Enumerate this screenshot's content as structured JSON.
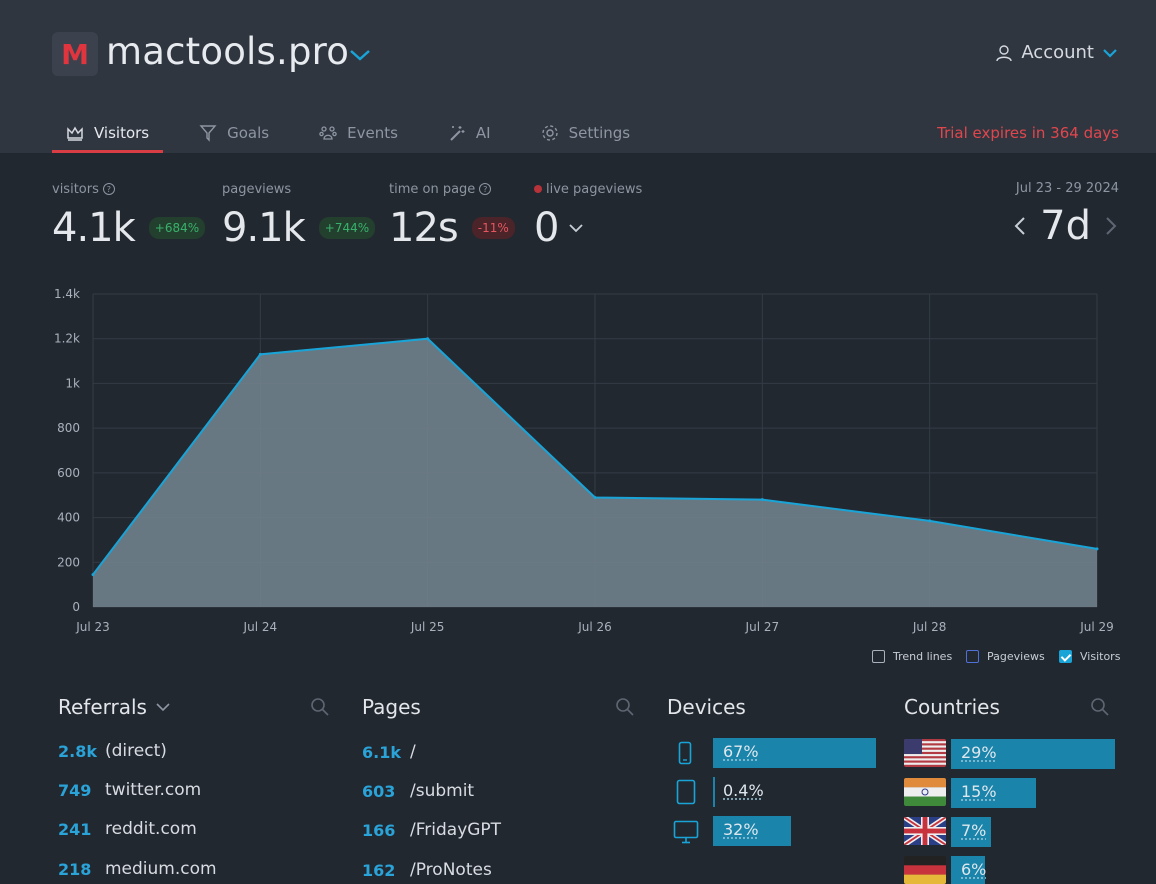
{
  "app": {
    "logo_letter": "M",
    "site_name": "mactools.pro",
    "account_label": "Account"
  },
  "nav": {
    "tabs": [
      {
        "label": "Visitors",
        "icon": "crown-icon",
        "active": true
      },
      {
        "label": "Goals",
        "icon": "funnel-icon",
        "active": false
      },
      {
        "label": "Events",
        "icon": "paw-icon",
        "active": false
      },
      {
        "label": "AI",
        "icon": "magic-wand-icon",
        "active": false
      },
      {
        "label": "Settings",
        "icon": "gear-icon",
        "active": false
      }
    ],
    "trial_notice": "Trial expires in 364 days"
  },
  "stats": {
    "visitors": {
      "label": "visitors",
      "value": "4.1k",
      "change": "+684%"
    },
    "pageviews": {
      "label": "pageviews",
      "value": "9.1k",
      "change": "+744%"
    },
    "time_on_page": {
      "label": "time on page",
      "value": "12s",
      "change": "-11%"
    },
    "live": {
      "label": "live pageviews",
      "value": "0"
    },
    "date_range": "Jul 23 - 29 2024",
    "period": "7d"
  },
  "chart_data": {
    "type": "area",
    "title": "",
    "categories": [
      "Jul 23",
      "Jul 24",
      "Jul 25",
      "Jul 26",
      "Jul 27",
      "Jul 28",
      "Jul 29"
    ],
    "series": [
      {
        "name": "Visitors",
        "values": [
          145,
          1130,
          1200,
          490,
          480,
          385,
          260
        ]
      }
    ],
    "yticks": [
      "0",
      "200",
      "400",
      "600",
      "800",
      "1k",
      "1.2k",
      "1.4k"
    ],
    "ylim": [
      0,
      1400
    ],
    "grid": true
  },
  "legend": {
    "trend_lines": "Trend lines",
    "pageviews": "Pageviews",
    "visitors": "Visitors"
  },
  "referrals": {
    "title": "Referrals",
    "rows": [
      {
        "count": "2.8k",
        "source": "(direct)"
      },
      {
        "count": "749",
        "source": "twitter.com"
      },
      {
        "count": "241",
        "source": "reddit.com"
      },
      {
        "count": "218",
        "source": "medium.com"
      }
    ]
  },
  "pages": {
    "title": "Pages",
    "rows": [
      {
        "count": "6.1k",
        "path": "/"
      },
      {
        "count": "603",
        "path": "/submit"
      },
      {
        "count": "166",
        "path": "/FridayGPT"
      },
      {
        "count": "162",
        "path": "/ProNotes"
      }
    ]
  },
  "devices": {
    "title": "Devices",
    "rows": [
      {
        "icon": "phone-icon",
        "percent": "67%",
        "share": 0.67
      },
      {
        "icon": "tablet-icon",
        "percent": "0.4%",
        "share": 0.004
      },
      {
        "icon": "desktop-icon",
        "percent": "32%",
        "share": 0.32
      }
    ]
  },
  "countries": {
    "title": "Countries",
    "rows": [
      {
        "flag": "us-flag-icon",
        "percent": "29%",
        "share": 0.29
      },
      {
        "flag": "india-flag-icon",
        "percent": "15%",
        "share": 0.15
      },
      {
        "flag": "uk-flag-icon",
        "percent": "7%",
        "share": 0.07
      },
      {
        "flag": "germany-flag-icon",
        "percent": "6%",
        "share": 0.06
      }
    ]
  }
}
